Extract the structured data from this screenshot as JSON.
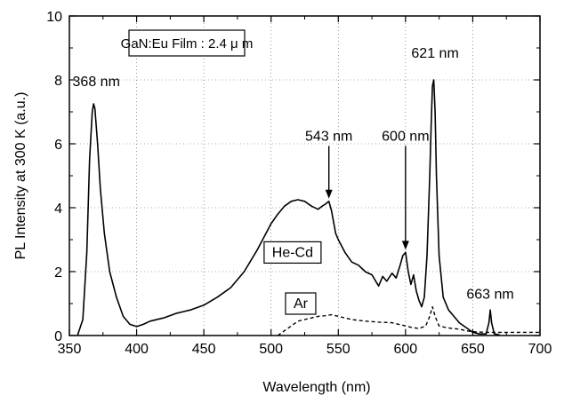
{
  "chart_data": {
    "type": "line",
    "title": "",
    "xlabel": "Wavelength (nm)",
    "ylabel": "PL Intensity at 300 K (a.u.)",
    "xlim": [
      350,
      700
    ],
    "ylim": [
      0,
      10
    ],
    "grid": true,
    "xticks": [
      350,
      400,
      450,
      500,
      550,
      600,
      650,
      700
    ],
    "yticks": [
      0,
      2,
      4,
      6,
      8,
      10
    ],
    "xtick_labels": [
      "350",
      "400",
      "450",
      "500",
      "550",
      "600",
      "650",
      "700"
    ],
    "ytick_labels": [
      "0",
      "2",
      "4",
      "6",
      "8",
      "10"
    ],
    "sample_label": "GaN:Eu Film : 2.4 μ m",
    "series": [
      {
        "name": "He-Cd",
        "style": "solid",
        "color": "#000000",
        "x": [
          356,
          360,
          363,
          365,
          367,
          368,
          369,
          371,
          373,
          376,
          380,
          385,
          390,
          395,
          400,
          405,
          410,
          420,
          430,
          435,
          440,
          450,
          460,
          470,
          480,
          490,
          500,
          505,
          510,
          515,
          520,
          525,
          530,
          535,
          538,
          540,
          543,
          545,
          548,
          550,
          555,
          560,
          565,
          570,
          575,
          580,
          583,
          586,
          590,
          593,
          596,
          598,
          600,
          602,
          604,
          606,
          608,
          610,
          612,
          614,
          616,
          618,
          619,
          620,
          621,
          622,
          623,
          625,
          628,
          632,
          636,
          640,
          645,
          650,
          655,
          660,
          662,
          663,
          664,
          666,
          670
        ],
        "y": [
          0,
          0.5,
          2.6,
          5.5,
          7.0,
          7.25,
          7.1,
          6.0,
          4.6,
          3.2,
          2.0,
          1.2,
          0.6,
          0.35,
          0.28,
          0.35,
          0.45,
          0.55,
          0.7,
          0.75,
          0.8,
          0.95,
          1.2,
          1.5,
          2.0,
          2.7,
          3.5,
          3.8,
          4.05,
          4.2,
          4.25,
          4.2,
          4.05,
          3.95,
          4.05,
          4.1,
          4.2,
          3.9,
          3.2,
          3.0,
          2.6,
          2.3,
          2.2,
          2.0,
          1.9,
          1.55,
          1.85,
          1.7,
          1.95,
          1.8,
          2.2,
          2.5,
          2.6,
          2.0,
          1.6,
          1.9,
          1.4,
          1.1,
          0.9,
          1.2,
          2.5,
          5.0,
          6.5,
          7.8,
          8.0,
          7.0,
          5.0,
          2.5,
          1.2,
          0.8,
          0.6,
          0.4,
          0.25,
          0.1,
          0.05,
          0.05,
          0.4,
          0.8,
          0.4,
          0.05,
          0.02
        ]
      },
      {
        "name": "Ar",
        "style": "dashed",
        "color": "#000000",
        "x": [
          505,
          510,
          515,
          520,
          525,
          530,
          535,
          540,
          545,
          550,
          555,
          560,
          570,
          580,
          590,
          595,
          600,
          605,
          610,
          615,
          618,
          620,
          622,
          625,
          630,
          635,
          640,
          645,
          650,
          660,
          670,
          680,
          690,
          700
        ],
        "y": [
          0.0,
          0.15,
          0.3,
          0.45,
          0.5,
          0.55,
          0.6,
          0.62,
          0.65,
          0.6,
          0.55,
          0.5,
          0.45,
          0.42,
          0.4,
          0.35,
          0.3,
          0.25,
          0.22,
          0.3,
          0.6,
          0.9,
          0.6,
          0.3,
          0.25,
          0.22,
          0.2,
          0.15,
          0.12,
          0.1,
          0.1,
          0.1,
          0.1,
          0.1
        ]
      }
    ],
    "series_labels": [
      {
        "text": "He-Cd",
        "x": 516,
        "y": 2.6,
        "boxed": true
      },
      {
        "text": "Ar",
        "x": 522,
        "y": 1.0,
        "boxed": true
      }
    ],
    "annotations": [
      {
        "text": "368 nm",
        "x": 368,
        "y": 7.25,
        "label_x": 370,
        "label_y": 7.8,
        "arrow": false
      },
      {
        "text": "543 nm",
        "x": 543,
        "y": 4.2,
        "label_x": 543,
        "label_y": 6.1,
        "arrow": true
      },
      {
        "text": "600 nm",
        "x": 600,
        "y": 2.6,
        "label_x": 600,
        "label_y": 6.1,
        "arrow": true
      },
      {
        "text": "621 nm",
        "x": 621,
        "y": 8.0,
        "label_x": 622,
        "label_y": 8.7,
        "arrow": false
      },
      {
        "text": "663 nm",
        "x": 663,
        "y": 0.8,
        "label_x": 663,
        "label_y": 1.15,
        "arrow": false
      }
    ]
  }
}
